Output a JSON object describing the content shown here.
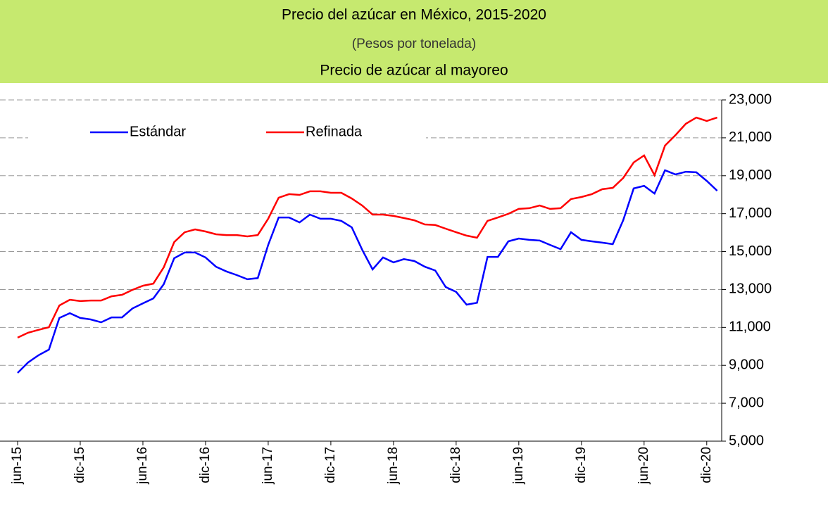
{
  "chart_data": {
    "type": "line",
    "title": "Precio del azúcar en México, 2015-2020",
    "subtitle": "(Pesos por tonelada)",
    "heading": "Precio de azúcar al mayoreo",
    "categories": [
      "jun-15",
      null,
      null,
      null,
      null,
      null,
      "dic-15",
      null,
      null,
      null,
      null,
      null,
      "jun-16",
      null,
      null,
      null,
      null,
      null,
      "dic-16",
      null,
      null,
      null,
      null,
      null,
      "jun-17",
      null,
      null,
      null,
      null,
      null,
      "dic-17",
      null,
      null,
      null,
      null,
      null,
      "jun-18",
      null,
      null,
      null,
      null,
      null,
      "dic-18",
      null,
      null,
      null,
      null,
      null,
      "jun-19",
      null,
      null,
      null,
      null,
      null,
      "dic-19",
      null,
      null,
      null,
      null,
      null,
      "jun-20",
      null,
      null,
      null,
      null,
      null,
      "dic-20",
      null
    ],
    "series": [
      {
        "name": "Estándar",
        "color": "#0000ff",
        "values": [
          8600,
          9150,
          9530,
          9830,
          11500,
          11750,
          11500,
          11420,
          11270,
          11530,
          11530,
          12000,
          12270,
          12530,
          13280,
          14650,
          14950,
          14950,
          14690,
          14200,
          13950,
          13760,
          13540,
          13600,
          15350,
          16800,
          16800,
          16540,
          16950,
          16730,
          16730,
          16620,
          16280,
          15100,
          14060,
          14690,
          14430,
          14600,
          14500,
          14200,
          14000,
          13130,
          12870,
          12200,
          12300,
          14720,
          14720,
          15540,
          15690,
          15620,
          15580,
          15350,
          15130,
          16020,
          15620,
          15540,
          15470,
          15390,
          16650,
          18330,
          18470,
          18060,
          19290,
          19070,
          19210,
          19180,
          18730,
          18210
        ]
      },
      {
        "name": "Refinada",
        "color": "#ff0000",
        "values": [
          10460,
          10720,
          10870,
          11010,
          12160,
          12460,
          12390,
          12420,
          12420,
          12640,
          12720,
          12980,
          13200,
          13310,
          14170,
          15500,
          16020,
          16170,
          16060,
          15910,
          15870,
          15870,
          15800,
          15870,
          16730,
          17840,
          18030,
          17990,
          18180,
          18180,
          18100,
          18100,
          17800,
          17430,
          16950,
          16950,
          16880,
          16770,
          16650,
          16430,
          16400,
          16210,
          16020,
          15840,
          15730,
          16620,
          16800,
          16990,
          17250,
          17290,
          17430,
          17250,
          17290,
          17770,
          17880,
          18030,
          18290,
          18360,
          18880,
          19700,
          20070,
          19030,
          20590,
          21140,
          21740,
          22070,
          21890,
          22070
        ]
      }
    ],
    "ylim": [
      5000,
      23000
    ],
    "yticks": [
      {
        "value": 5000,
        "label": "5,000"
      },
      {
        "value": 7000,
        "label": "7,000"
      },
      {
        "value": 9000,
        "label": "9,000"
      },
      {
        "value": 11000,
        "label": "11,000"
      },
      {
        "value": 13000,
        "label": "13,000"
      },
      {
        "value": 15000,
        "label": "15,000"
      },
      {
        "value": 17000,
        "label": "17,000"
      },
      {
        "value": 19000,
        "label": "19,000"
      },
      {
        "value": 21000,
        "label": "21,000"
      },
      {
        "value": 23000,
        "label": "23,000"
      }
    ],
    "grid": true,
    "legend": "top"
  }
}
